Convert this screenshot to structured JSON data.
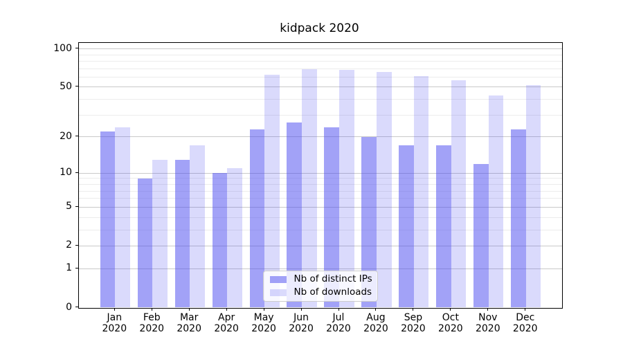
{
  "title": "kidpack 2020",
  "chart_data": {
    "type": "bar",
    "title": "kidpack 2020",
    "xlabel": "",
    "ylabel": "",
    "scale": "log1p (symlog-like)",
    "grid": true,
    "legend_position": "lower center",
    "year": "2020",
    "categories": [
      "Jan",
      "Feb",
      "Mar",
      "Apr",
      "May",
      "Jun",
      "Jul",
      "Aug",
      "Sep",
      "Oct",
      "Nov",
      "Dec"
    ],
    "series": [
      {
        "name": "Nb of distinct IPs",
        "color": "rgba(70,70,240,0.5)",
        "values": [
          22,
          9,
          13,
          10,
          23,
          26,
          24,
          20,
          17,
          17,
          12,
          23
        ]
      },
      {
        "name": "Nb of downloads",
        "color": "rgba(70,70,240,0.2)",
        "values": [
          24,
          13,
          17,
          11,
          63,
          69,
          68,
          66,
          61,
          57,
          43,
          52
        ]
      }
    ],
    "ylim": [
      0,
      112
    ],
    "yticks": [
      0,
      1,
      2,
      5,
      10,
      20,
      50,
      100
    ],
    "ytick_labels": [
      "0",
      "1",
      "2",
      "5",
      "10",
      "20",
      "50",
      "100"
    ],
    "minor_yticks": [
      3,
      4,
      6,
      7,
      8,
      9,
      30,
      40,
      60,
      70,
      80,
      90
    ],
    "colors": {
      "major_grid": "#c9c9c9",
      "minor_grid": "#ececec",
      "spine": "#000000",
      "background": "#ffffff",
      "legend_border": "#cccccc"
    }
  }
}
